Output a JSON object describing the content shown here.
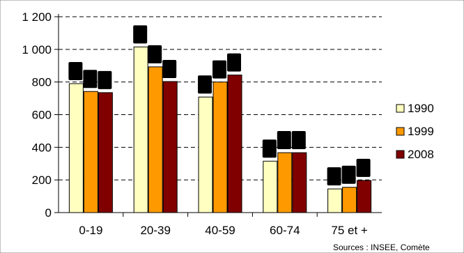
{
  "chart_data": {
    "type": "bar",
    "categories": [
      "0-19",
      "20-39",
      "40-59",
      "60-74",
      "75 et +"
    ],
    "series": [
      {
        "name": "1990",
        "color": "#ffffc0",
        "values": [
          790,
          1015,
          708,
          315,
          145
        ]
      },
      {
        "name": "1999",
        "color": "#ff9900",
        "values": [
          742,
          893,
          800,
          367,
          155
        ]
      },
      {
        "name": "2008",
        "color": "#800000",
        "values": [
          735,
          803,
          843,
          367,
          197
        ]
      }
    ],
    "yticks": [
      "0",
      "200",
      "400",
      "600",
      "800",
      "1 000",
      "1 200"
    ],
    "ylim": [
      0,
      1200
    ],
    "grid": true,
    "legend": "right",
    "source": "Sources : INSEE, Comète"
  }
}
